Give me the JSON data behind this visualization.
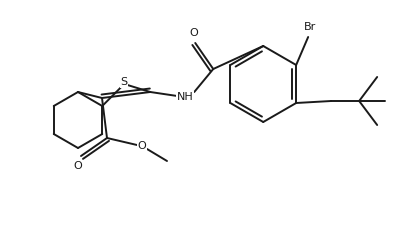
{
  "background_color": "#ffffff",
  "line_color": "#1a1a1a",
  "line_width": 1.4,
  "figsize": [
    3.98,
    2.33
  ],
  "dpi": 100,
  "xlim": [
    0,
    398
  ],
  "ylim": [
    0,
    233
  ]
}
